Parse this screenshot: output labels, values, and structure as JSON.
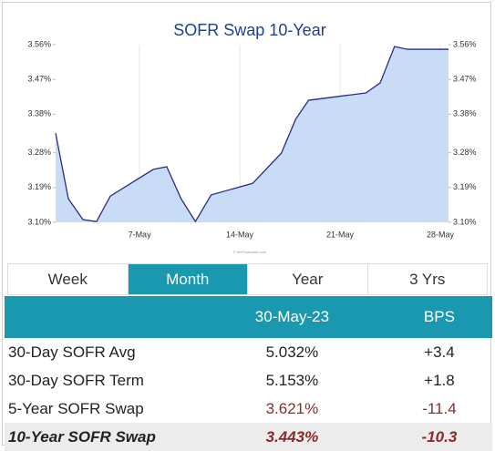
{
  "chart_data": {
    "type": "area",
    "title": "SOFR Swap 10-Year",
    "watermark": "© theFinancials.com",
    "x": [
      1.14,
      2.03,
      3.05,
      4.0,
      4.96,
      7.96,
      8.9,
      9.9,
      10.9,
      12.0,
      14.9,
      16.9,
      17.9,
      18.8,
      22.8,
      23.8,
      24.8,
      25.7,
      28.57
    ],
    "values": [
      3.331,
      3.161,
      3.107,
      3.102,
      3.168,
      3.237,
      3.244,
      3.161,
      3.102,
      3.171,
      3.201,
      3.279,
      3.367,
      3.416,
      3.435,
      3.461,
      3.555,
      3.548,
      3.548
    ],
    "color": "#2b2b8a",
    "fill": "#c9dcf5",
    "xlim": [
      1.14,
      28.57
    ],
    "xticks": [
      {
        "value": 7,
        "label": "7-May"
      },
      {
        "value": 14,
        "label": "14-May"
      },
      {
        "value": 21,
        "label": "21-May"
      },
      {
        "value": 28,
        "label": "28-May"
      }
    ],
    "ylim": [
      3.1,
      3.56
    ],
    "yticks": [
      {
        "value": 3.1,
        "label": "3.10%"
      },
      {
        "value": 3.19,
        "label": "3.19%"
      },
      {
        "value": 3.28,
        "label": "3.28%"
      },
      {
        "value": 3.38,
        "label": "3.38%"
      },
      {
        "value": 3.47,
        "label": "3.47%"
      },
      {
        "value": 3.56,
        "label": "3.56%"
      }
    ],
    "y2lim": [
      3.1,
      3.56
    ],
    "y2ticks": [
      {
        "value": 3.1,
        "label": "3.10%"
      },
      {
        "value": 3.19,
        "label": "3.19%"
      },
      {
        "value": 3.28,
        "label": "3.28%"
      },
      {
        "value": 3.38,
        "label": "3.38%"
      },
      {
        "value": 3.47,
        "label": "3.47%"
      },
      {
        "value": 3.56,
        "label": "3.56%"
      }
    ],
    "grid": true
  },
  "tabs": [
    "Week",
    "Month",
    "Year",
    "3 Yrs"
  ],
  "table": {
    "columns": [
      "30-May-23",
      "BPS"
    ],
    "rows": [
      [
        "30-Day SOFR Avg",
        "5.032%",
        "+3.4"
      ],
      [
        "30-Day SOFR Term",
        "5.153%",
        "+1.8"
      ],
      [
        "5-Year SOFR Swap",
        "3.621%",
        "-11.4"
      ],
      [
        "10-Year SOFR Swap",
        "3.443%",
        "-10.3"
      ]
    ]
  }
}
